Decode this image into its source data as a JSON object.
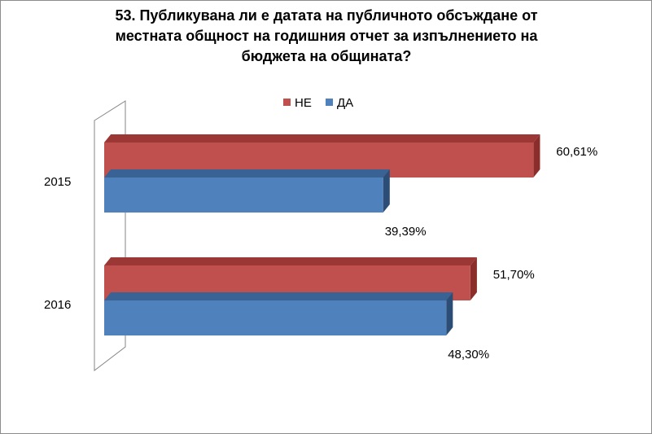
{
  "chart_data": {
    "type": "bar",
    "orientation": "horizontal",
    "three_d": true,
    "title_lines": [
      "53. Публикувана ли е датата на публичното обсъждане от",
      "местната общност на годишния отчет за  изпълнението на",
      "бюджета на общината?"
    ],
    "categories": [
      "2015",
      "2016"
    ],
    "series": [
      {
        "name": "НЕ",
        "values": [
          60.61,
          51.7
        ],
        "labels": [
          "60,61%",
          "51,70%"
        ],
        "color": "#c0504d",
        "side_color": "#8b2e2b",
        "top_color": "#9b3835"
      },
      {
        "name": "ДА",
        "values": [
          39.39,
          48.3
        ],
        "labels": [
          "39,39%",
          "48,30%"
        ],
        "color": "#4f81bd",
        "side_color": "#2c4d75",
        "top_color": "#3a6395"
      }
    ],
    "xlim": [
      0,
      70
    ],
    "legend_position": "top",
    "grid": false
  }
}
